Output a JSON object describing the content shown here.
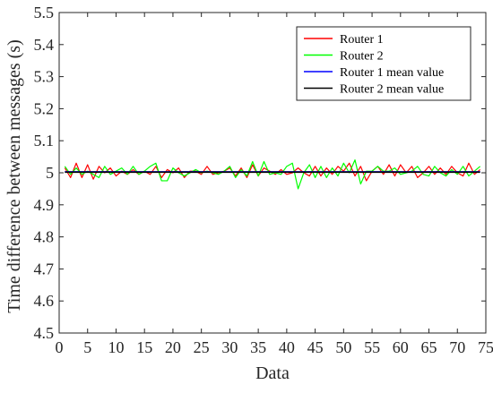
{
  "colors": {
    "router1": "#ff0000",
    "router2": "#00ff00",
    "router1_mean": "#0000ff",
    "router2_mean": "#000000",
    "axis": "#262626",
    "background": "#ffffff"
  },
  "chart_data": {
    "type": "line",
    "title": "",
    "xlabel": "Data",
    "ylabel": "Time difference between messages (s)",
    "xlim": [
      0,
      75
    ],
    "ylim": [
      4.5,
      5.5
    ],
    "xticks": [
      0,
      5,
      10,
      15,
      20,
      25,
      30,
      35,
      40,
      45,
      50,
      55,
      60,
      65,
      70,
      75
    ],
    "xtick_labels": [
      "0",
      "5",
      "10",
      "15",
      "20",
      "25",
      "30",
      "35",
      "40",
      "45",
      "50",
      "55",
      "60",
      "65",
      "70",
      "75"
    ],
    "yticks": [
      4.5,
      4.6,
      4.7,
      4.8,
      4.9,
      5,
      5.1,
      5.2,
      5.3,
      5.4,
      5.5
    ],
    "ytick_labels": [
      "4.5",
      "4.6",
      "4.7",
      "4.8",
      "4.9",
      "5",
      "5.1",
      "5.2",
      "5.3",
      "5.4",
      "5.5"
    ],
    "grid": false,
    "legend_position": "top-right",
    "legend": [
      "Router 1",
      "Router 2",
      "Router 1 mean value",
      "Router 2 mean value"
    ],
    "x": [
      1,
      2,
      3,
      4,
      5,
      6,
      7,
      8,
      9,
      10,
      11,
      12,
      13,
      14,
      15,
      16,
      17,
      18,
      19,
      20,
      21,
      22,
      23,
      24,
      25,
      26,
      27,
      28,
      29,
      30,
      31,
      32,
      33,
      34,
      35,
      36,
      37,
      38,
      39,
      40,
      41,
      42,
      43,
      44,
      45,
      46,
      47,
      48,
      49,
      50,
      51,
      52,
      53,
      54,
      55,
      56,
      57,
      58,
      59,
      60,
      61,
      62,
      63,
      64,
      65,
      66,
      67,
      68,
      69,
      70,
      71,
      72,
      73,
      74
    ],
    "series": [
      {
        "name": "Router 1",
        "color_key": "router1",
        "values": [
          5.015,
          4.985,
          5.03,
          4.985,
          5.025,
          4.98,
          5.02,
          5.0,
          5.015,
          4.99,
          5.005,
          4.995,
          5.01,
          4.995,
          5.005,
          4.995,
          5.02,
          4.985,
          5.01,
          5.0,
          5.015,
          4.985,
          5.005,
          5.005,
          4.995,
          5.02,
          4.995,
          5.0,
          5.005,
          5.015,
          4.99,
          5.015,
          4.985,
          5.025,
          4.99,
          5.015,
          5.005,
          4.995,
          5.01,
          4.995,
          5.0,
          5.015,
          5.0,
          4.99,
          5.02,
          4.99,
          5.015,
          4.995,
          5.02,
          5.005,
          5.03,
          4.99,
          5.02,
          4.975,
          5.005,
          5.02,
          4.995,
          5.025,
          4.99,
          5.025,
          5.0,
          5.02,
          4.985,
          5.0,
          5.02,
          4.995,
          5.015,
          4.995,
          5.02,
          5.0,
          4.99,
          5.03,
          4.995,
          5.01
        ]
      },
      {
        "name": "Router 2",
        "color_key": "router2",
        "values": [
          5.02,
          4.995,
          5.015,
          4.995,
          5.005,
          4.995,
          4.985,
          5.02,
          4.995,
          5.005,
          5.015,
          4.995,
          5.02,
          4.995,
          5.005,
          5.02,
          5.03,
          4.975,
          4.975,
          5.015,
          5.0,
          4.99,
          5.0,
          5.01,
          5.0,
          5.005,
          5.0,
          4.995,
          5.005,
          5.02,
          4.985,
          5.01,
          4.99,
          5.035,
          4.99,
          5.035,
          4.995,
          5.0,
          4.995,
          5.02,
          5.03,
          4.95,
          5.0,
          5.025,
          4.985,
          5.02,
          4.985,
          5.015,
          4.99,
          5.03,
          5.0,
          5.04,
          4.965,
          5.005,
          5.005,
          5.02,
          5.005,
          5.005,
          5.015,
          4.995,
          5.0,
          5.005,
          5.02,
          4.995,
          4.99,
          5.02,
          5.0,
          4.99,
          5.01,
          4.995,
          5.02,
          4.99,
          5.005,
          5.02
        ]
      },
      {
        "name": "Router 1 mean value",
        "color_key": "router1_mean",
        "constant": 5.003
      },
      {
        "name": "Router 2 mean value",
        "color_key": "router2_mean",
        "constant": 5.002
      }
    ]
  }
}
